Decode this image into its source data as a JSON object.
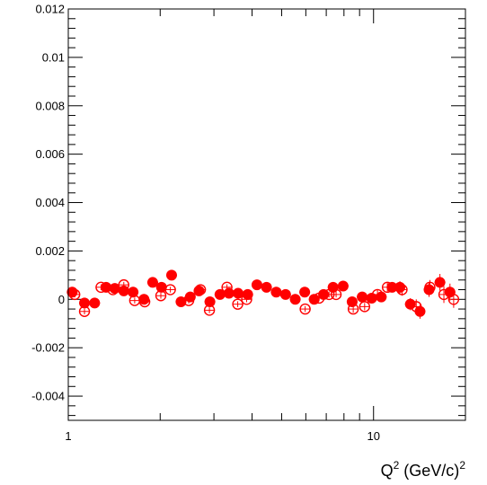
{
  "chart_data": {
    "type": "scatter",
    "x_scale": "log",
    "xlim": [
      1,
      20
    ],
    "ylim": [
      -0.005,
      0.012
    ],
    "grid": false,
    "legend": "none",
    "xlabel": {
      "base": "Q",
      "exp1": "2",
      "unit": " (GeV/c)",
      "exp2": "2"
    },
    "ylabel": "",
    "x_ticks": [
      {
        "value": 1,
        "label": "1"
      },
      {
        "value": 10,
        "label": "10"
      }
    ],
    "y_ticks": [
      {
        "value": -0.004,
        "label": "-0.004"
      },
      {
        "value": -0.002,
        "label": "-0.002"
      },
      {
        "value": 0,
        "label": "0"
      },
      {
        "value": 0.002,
        "label": "0.002"
      },
      {
        "value": 0.004,
        "label": "0.004"
      },
      {
        "value": 0.006,
        "label": "0.006"
      },
      {
        "value": 0.008,
        "label": "0.008"
      },
      {
        "value": 0.01,
        "label": "0.01"
      },
      {
        "value": 0.012,
        "label": "0.012"
      }
    ],
    "marker_color": "#ff0000",
    "series": [
      {
        "marker": "filled-circle",
        "points": [
          {
            "x": 1.03,
            "y": 0.0003,
            "err": 0.00012
          },
          {
            "x": 1.13,
            "y": -0.00015,
            "err": 0.00012
          },
          {
            "x": 1.22,
            "y": -0.00015,
            "err": 0.00012
          },
          {
            "x": 1.33,
            "y": 0.0005,
            "err": 0.00012
          },
          {
            "x": 1.42,
            "y": 0.00045,
            "err": 0.00012
          },
          {
            "x": 1.52,
            "y": 0.00035,
            "err": 0.00012
          },
          {
            "x": 1.63,
            "y": 0.0003,
            "err": 0.00012
          },
          {
            "x": 1.77,
            "y": 0.0,
            "err": 0.00012
          },
          {
            "x": 1.89,
            "y": 0.0007,
            "err": 0.00012
          },
          {
            "x": 2.02,
            "y": 0.0005,
            "err": 0.00012
          },
          {
            "x": 2.18,
            "y": 0.001,
            "err": 0.00012
          },
          {
            "x": 2.34,
            "y": -0.0001,
            "err": 0.00012
          },
          {
            "x": 2.51,
            "y": 0.0001,
            "err": 0.00012
          },
          {
            "x": 2.68,
            "y": 0.00035,
            "err": 0.00012
          },
          {
            "x": 2.91,
            "y": -0.0001,
            "err": 0.00012
          },
          {
            "x": 3.14,
            "y": 0.0002,
            "err": 0.00012
          },
          {
            "x": 3.36,
            "y": 0.00025,
            "err": 0.00012
          },
          {
            "x": 3.6,
            "y": 0.00025,
            "err": 0.00012
          },
          {
            "x": 3.87,
            "y": 0.0002,
            "err": 0.00012
          },
          {
            "x": 4.15,
            "y": 0.0006,
            "err": 0.00012
          },
          {
            "x": 4.46,
            "y": 0.0005,
            "err": 0.00012
          },
          {
            "x": 4.8,
            "y": 0.0003,
            "err": 0.00012
          },
          {
            "x": 5.15,
            "y": 0.0002,
            "err": 0.00012
          },
          {
            "x": 5.54,
            "y": 0.0,
            "err": 0.00012
          },
          {
            "x": 5.95,
            "y": 0.0003,
            "err": 0.00012
          },
          {
            "x": 6.39,
            "y": 0.0,
            "err": 0.00012
          },
          {
            "x": 6.86,
            "y": 0.0002,
            "err": 0.00012
          },
          {
            "x": 7.37,
            "y": 0.0005,
            "err": 0.00012
          },
          {
            "x": 7.95,
            "y": 0.00055,
            "err": 0.00012
          },
          {
            "x": 8.51,
            "y": -0.0001,
            "err": 0.00015
          },
          {
            "x": 9.18,
            "y": 0.0001,
            "err": 0.00015
          },
          {
            "x": 9.86,
            "y": 5e-05,
            "err": 0.00018
          },
          {
            "x": 10.6,
            "y": 0.0001,
            "err": 0.00018
          },
          {
            "x": 11.5,
            "y": 0.0005,
            "err": 0.0002
          },
          {
            "x": 12.2,
            "y": 0.0005,
            "err": 0.00025
          },
          {
            "x": 13.2,
            "y": -0.0002,
            "err": 0.00025
          },
          {
            "x": 14.2,
            "y": -0.0005,
            "err": 0.0003
          },
          {
            "x": 15.2,
            "y": 0.0004,
            "err": 0.0003
          },
          {
            "x": 16.5,
            "y": 0.0007,
            "err": 0.00035
          },
          {
            "x": 17.8,
            "y": 0.0003,
            "err": 0.00035
          }
        ]
      },
      {
        "marker": "open-circle",
        "points": [
          {
            "x": 1.05,
            "y": 0.0002,
            "err": 0.00012
          },
          {
            "x": 1.13,
            "y": -0.0005,
            "err": 0.00012
          },
          {
            "x": 1.28,
            "y": 0.0005,
            "err": 0.00012
          },
          {
            "x": 1.4,
            "y": 0.0004,
            "err": 0.00012
          },
          {
            "x": 1.52,
            "y": 0.0006,
            "err": 0.00012
          },
          {
            "x": 1.65,
            "y": -5e-05,
            "err": 0.00012
          },
          {
            "x": 1.78,
            "y": -0.0001,
            "err": 0.00012
          },
          {
            "x": 2.01,
            "y": 0.00015,
            "err": 0.00012
          },
          {
            "x": 2.16,
            "y": 0.0004,
            "err": 0.00012
          },
          {
            "x": 2.48,
            "y": -5e-05,
            "err": 0.00012
          },
          {
            "x": 2.71,
            "y": 0.0004,
            "err": 0.00012
          },
          {
            "x": 2.9,
            "y": -0.00045,
            "err": 0.00012
          },
          {
            "x": 3.31,
            "y": 0.0005,
            "err": 0.00012
          },
          {
            "x": 3.59,
            "y": -0.0002,
            "err": 0.00012
          },
          {
            "x": 3.84,
            "y": 0.0,
            "err": 0.00012
          },
          {
            "x": 5.97,
            "y": -0.0004,
            "err": 0.00012
          },
          {
            "x": 6.63,
            "y": 5e-05,
            "err": 0.00012
          },
          {
            "x": 7.15,
            "y": 0.0002,
            "err": 0.00012
          },
          {
            "x": 7.54,
            "y": 0.0002,
            "err": 0.00012
          },
          {
            "x": 8.58,
            "y": -0.0004,
            "err": 0.00015
          },
          {
            "x": 9.35,
            "y": -0.0003,
            "err": 0.00015
          },
          {
            "x": 10.3,
            "y": 0.0002,
            "err": 0.0002
          },
          {
            "x": 11.1,
            "y": 0.0005,
            "err": 0.0002
          },
          {
            "x": 12.4,
            "y": 0.0004,
            "err": 0.00025
          },
          {
            "x": 13.8,
            "y": -0.0003,
            "err": 0.0003
          },
          {
            "x": 15.3,
            "y": 0.0005,
            "err": 0.0003
          },
          {
            "x": 17.0,
            "y": 0.0002,
            "err": 0.00035
          },
          {
            "x": 18.3,
            "y": 0.0,
            "err": 0.00035
          }
        ]
      }
    ]
  }
}
